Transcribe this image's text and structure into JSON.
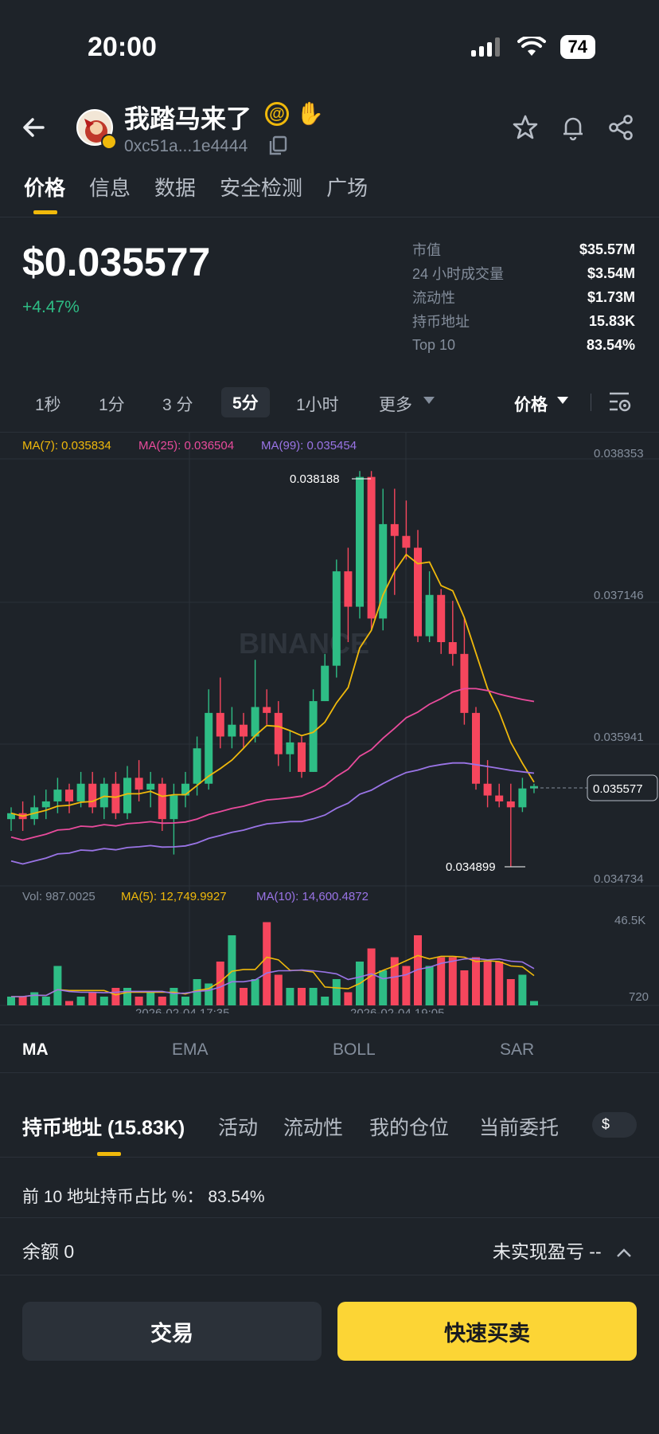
{
  "status": {
    "time": "20:00",
    "battery": "74"
  },
  "header": {
    "token_name": "我踏马来了",
    "at_symbol": "@",
    "address": "0xc51a...1e4444"
  },
  "tabs": [
    "价格",
    "信息",
    "数据",
    "安全检测",
    "广场"
  ],
  "price": {
    "value": "$0.035577",
    "change": "+4.47%"
  },
  "stats": [
    {
      "k": "市值",
      "v": "$35.57M"
    },
    {
      "k": "24 小时成交量",
      "v": "$3.54M"
    },
    {
      "k": "流动性",
      "v": "$1.73M"
    },
    {
      "k": "持币地址",
      "v": "15.83K"
    },
    {
      "k": "Top 10",
      "v": "83.54%"
    }
  ],
  "intervals": {
    "s1": "1秒",
    "m1": "1分",
    "m3": "3 分",
    "m5": "5分",
    "h1": "1小时",
    "more": "更多",
    "price_type": "价格"
  },
  "chart": {
    "ma_legend": {
      "ma7": "MA(7): 0.035834",
      "ma25": "MA(25): 0.036504",
      "ma99": "MA(99): 0.035454"
    },
    "watermark": "BINANCE",
    "y_ticks": [
      "0.038353",
      "0.037146",
      "0.035941",
      "0.035577",
      "0.034734"
    ],
    "high_label": "0.038188",
    "low_label": "0.034899",
    "vol_legend": {
      "vol": "Vol: 987.0025",
      "ma5": "MA(5): 12,749.9927",
      "ma10": "MA(10): 14,600.4872"
    },
    "vol_ticks": [
      "46.5K",
      "720"
    ],
    "x_labels": [
      "2026-02-04 17:35",
      "2026-02-04 19:05"
    ],
    "colors": {
      "up": "#2ebd85",
      "down": "#f6465d",
      "ma7": "#f0b90b",
      "ma25": "#e94b9c",
      "ma99": "#9a74e6"
    }
  },
  "chart_data": {
    "type": "candlestick",
    "ylim": [
      0.034734,
      0.038353
    ],
    "candles": [
      [
        0.0353,
        0.03535,
        0.0354,
        0.0352
      ],
      [
        0.03535,
        0.0353,
        0.03545,
        0.0352
      ],
      [
        0.0353,
        0.0354,
        0.0355,
        0.03525
      ],
      [
        0.0354,
        0.03545,
        0.03555,
        0.0353
      ],
      [
        0.03545,
        0.03555,
        0.03565,
        0.03535
      ],
      [
        0.03555,
        0.03545,
        0.0356,
        0.03535
      ],
      [
        0.03545,
        0.0356,
        0.0357,
        0.0354
      ],
      [
        0.0356,
        0.0354,
        0.0357,
        0.03535
      ],
      [
        0.0354,
        0.0356,
        0.03565,
        0.0353
      ],
      [
        0.0356,
        0.03535,
        0.0357,
        0.0353
      ],
      [
        0.03535,
        0.03565,
        0.03575,
        0.0353
      ],
      [
        0.03565,
        0.03555,
        0.0358,
        0.03545
      ],
      [
        0.03555,
        0.0356,
        0.0357,
        0.0354
      ],
      [
        0.0356,
        0.0353,
        0.03565,
        0.0352
      ],
      [
        0.0353,
        0.0355,
        0.0356,
        0.035
      ],
      [
        0.0355,
        0.0356,
        0.0357,
        0.0354
      ],
      [
        0.0356,
        0.0359,
        0.036,
        0.0355
      ],
      [
        0.0356,
        0.0362,
        0.0364,
        0.03555
      ],
      [
        0.0362,
        0.036,
        0.0365,
        0.0359
      ],
      [
        0.036,
        0.0361,
        0.03625,
        0.0359
      ],
      [
        0.0361,
        0.036,
        0.0362,
        0.0359
      ],
      [
        0.036,
        0.03625,
        0.03665,
        0.03595
      ],
      [
        0.03625,
        0.0362,
        0.0364,
        0.0361
      ],
      [
        0.0362,
        0.03585,
        0.0363,
        0.03575
      ],
      [
        0.03585,
        0.03595,
        0.03605,
        0.0357
      ],
      [
        0.03595,
        0.0357,
        0.036,
        0.03565
      ],
      [
        0.0357,
        0.0363,
        0.0364,
        0.0357
      ],
      [
        0.0363,
        0.0366,
        0.0367,
        0.0363
      ],
      [
        0.0366,
        0.0374,
        0.0375,
        0.0365
      ],
      [
        0.0374,
        0.0371,
        0.0376,
        0.0368
      ],
      [
        0.0371,
        0.0382,
        0.03825,
        0.037
      ],
      [
        0.0382,
        0.037,
        0.03825,
        0.0369
      ],
      [
        0.037,
        0.0378,
        0.0381,
        0.0369
      ],
      [
        0.0378,
        0.0377,
        0.0381,
        0.0372
      ],
      [
        0.0377,
        0.0376,
        0.038,
        0.0375
      ],
      [
        0.0376,
        0.03685,
        0.03775,
        0.0368
      ],
      [
        0.03685,
        0.0372,
        0.0374,
        0.0368
      ],
      [
        0.0372,
        0.0368,
        0.03725,
        0.0367
      ],
      [
        0.0368,
        0.0367,
        0.03715,
        0.0366
      ],
      [
        0.0367,
        0.0362,
        0.037,
        0.0361
      ],
      [
        0.0362,
        0.0356,
        0.03625,
        0.03555
      ],
      [
        0.0356,
        0.0355,
        0.0358,
        0.0354
      ],
      [
        0.0355,
        0.03545,
        0.0356,
        0.0354
      ],
      [
        0.03545,
        0.0354,
        0.0356,
        0.0349
      ],
      [
        0.0354,
        0.03556,
        0.03565,
        0.03536
      ],
      [
        0.03556,
        0.03558,
        0.0356,
        0.03552
      ]
    ]
  },
  "ma_tabs": [
    "MA",
    "EMA",
    "BOLL",
    "SAR"
  ],
  "bottom_tabs": [
    "持币地址 (15.83K)",
    "活动",
    "流动性",
    "我的仓位",
    "当前委托"
  ],
  "currency_btn": "$",
  "holders_pct": "前 10 地址持币占比 %： 83.54%",
  "balance": "余额 0",
  "pnl": "未实现盈亏 --",
  "buttons": {
    "trade": "交易",
    "quick": "快速买卖"
  }
}
